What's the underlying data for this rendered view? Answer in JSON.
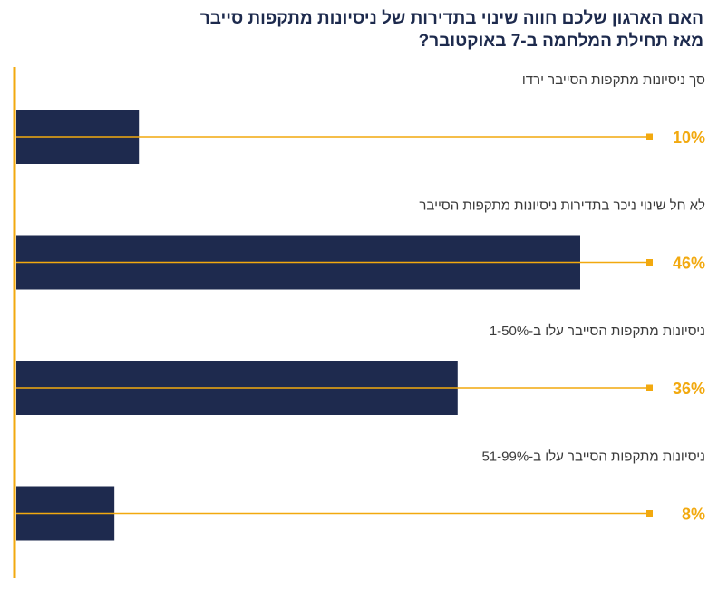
{
  "title": {
    "line1": "האם הארגון שלכם חווה שינוי בתדירות של ניסיונות מתקפות סייבר",
    "line2": "מאז תחילת המלחמה ב-7 באוקטובר?"
  },
  "colors": {
    "bar": "#1e2a4e",
    "accent": "#f2a90f",
    "title": "#1d2a4d",
    "label": "#3a3a3a"
  },
  "chart_data": {
    "type": "bar",
    "orientation": "horizontal",
    "categories": [
      "סך ניסיונות מתקפות הסייבר ירדו",
      "לא חל שינוי ניכר בתדירות ניסיונות מתקפות הסייבר",
      "ניסיונות מתקפות הסייבר עלו ב-1-50%",
      "ניסיונות מתקפות הסייבר עלו ב-51-99%"
    ],
    "values": [
      10,
      46,
      36,
      8
    ],
    "value_labels": [
      "10%",
      "46%",
      "36%",
      "8%"
    ],
    "unit": "%",
    "xlim": [
      0,
      58
    ],
    "grid": false,
    "legend": "none"
  }
}
